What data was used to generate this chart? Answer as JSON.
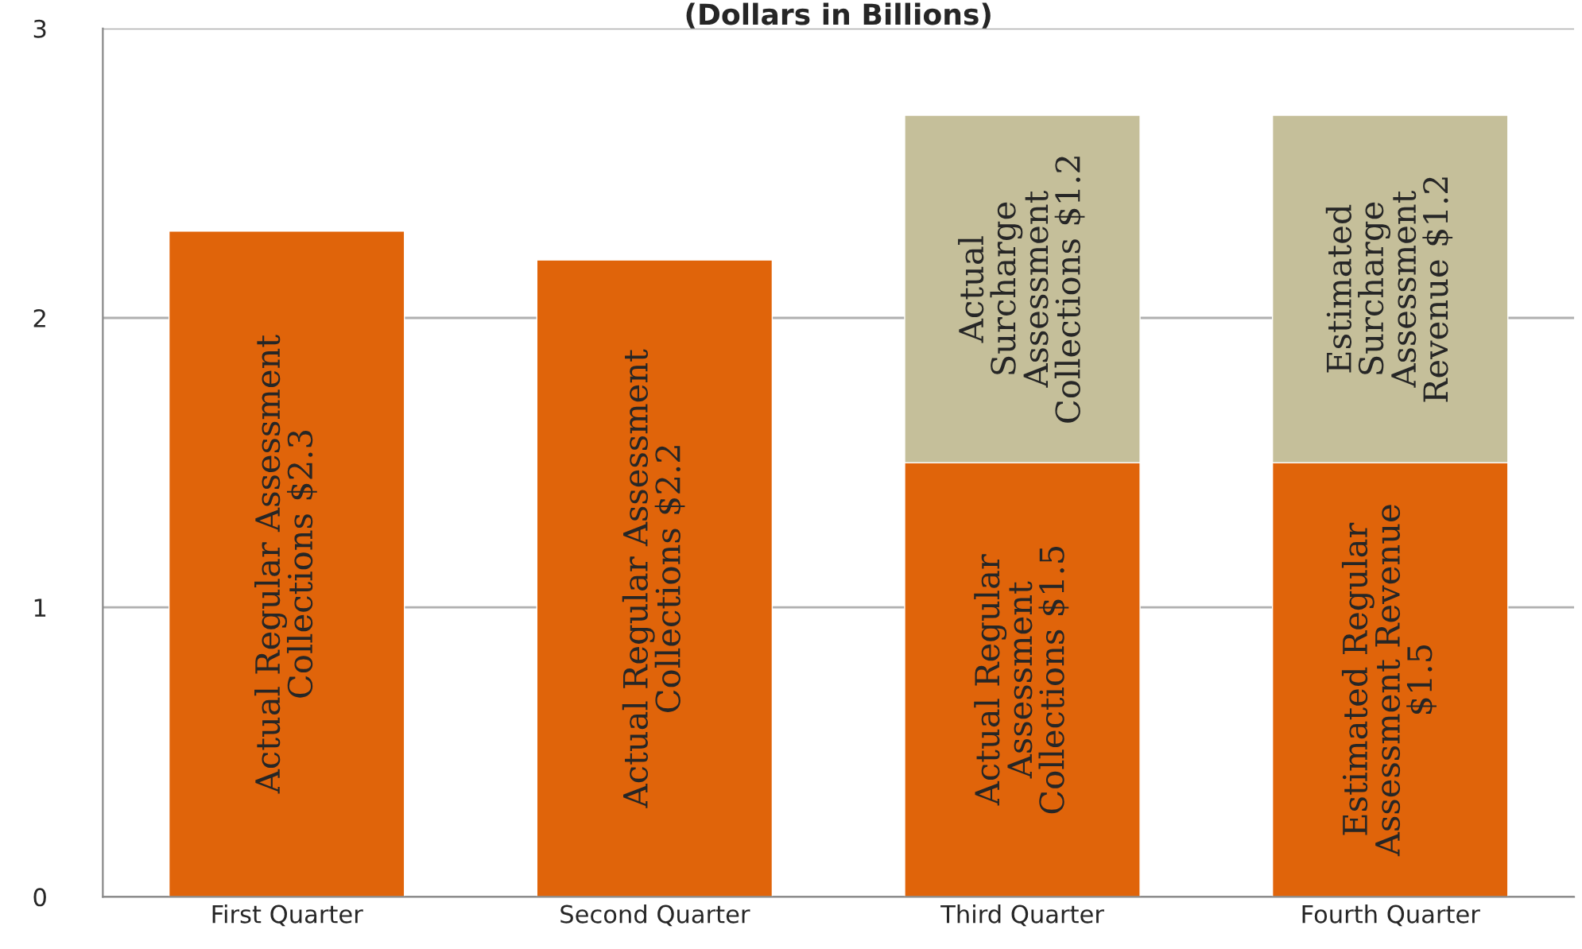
{
  "chart_data": {
    "type": "bar",
    "title": "(Dollars in Billions)",
    "stacked": true,
    "categories": [
      "First Quarter",
      "Second Quarter",
      "Third Quarter",
      "Fourth Quarter"
    ],
    "series": [
      {
        "color": "#e0640a",
        "values": [
          2.3,
          2.2,
          1.5,
          1.5
        ],
        "value_labels": [
          "Actual Regular Assessment\nCollections $2.3",
          "Actual Regular Assessment\nCollections $2.2",
          "Actual Regular\nAssessment\nCollections $1.5",
          "Estimated Regular\nAssessment Revenue\n$1.5"
        ]
      },
      {
        "color": "#c5bf9a",
        "values": [
          null,
          null,
          1.2,
          1.2
        ],
        "value_labels": [
          null,
          null,
          "Actual\nSurcharge\nAssessment\nCollections $1.2",
          "Estimated\nSurcharge\nAssessment\nRevenue $1.2"
        ]
      }
    ],
    "ylim": [
      0,
      3
    ],
    "yticks": [
      0,
      1,
      2,
      3
    ],
    "grid": "y"
  }
}
